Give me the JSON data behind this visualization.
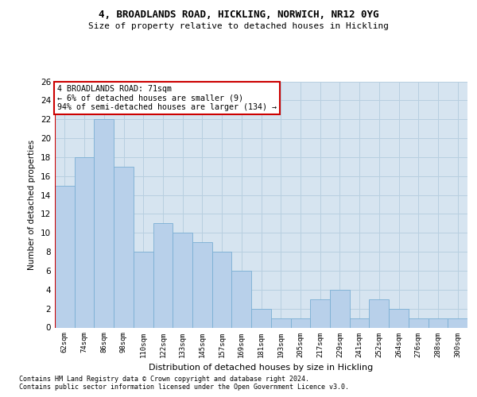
{
  "title1": "4, BROADLANDS ROAD, HICKLING, NORWICH, NR12 0YG",
  "title2": "Size of property relative to detached houses in Hickling",
  "xlabel": "Distribution of detached houses by size in Hickling",
  "ylabel": "Number of detached properties",
  "categories": [
    "62sqm",
    "74sqm",
    "86sqm",
    "98sqm",
    "110sqm",
    "122sqm",
    "133sqm",
    "145sqm",
    "157sqm",
    "169sqm",
    "181sqm",
    "193sqm",
    "205sqm",
    "217sqm",
    "229sqm",
    "241sqm",
    "252sqm",
    "264sqm",
    "276sqm",
    "288sqm",
    "300sqm"
  ],
  "values": [
    15,
    18,
    22,
    17,
    8,
    11,
    10,
    9,
    8,
    6,
    2,
    1,
    1,
    3,
    4,
    1,
    3,
    2,
    1,
    1,
    1
  ],
  "bar_color": "#b8d0ea",
  "bar_edge_color": "#7aafd4",
  "annotation_box_text": "4 BROADLANDS ROAD: 71sqm\n← 6% of detached houses are smaller (9)\n94% of semi-detached houses are larger (134) →",
  "annotation_box_color": "#ffffff",
  "annotation_box_edge_color": "#cc0000",
  "ref_line_color": "#cc0000",
  "background_color": "#ffffff",
  "plot_bg_color": "#d6e4f0",
  "grid_color": "#b8cfe0",
  "footer1": "Contains HM Land Registry data © Crown copyright and database right 2024.",
  "footer2": "Contains public sector information licensed under the Open Government Licence v3.0.",
  "ylim": [
    0,
    26
  ],
  "yticks": [
    0,
    2,
    4,
    6,
    8,
    10,
    12,
    14,
    16,
    18,
    20,
    22,
    24,
    26
  ]
}
